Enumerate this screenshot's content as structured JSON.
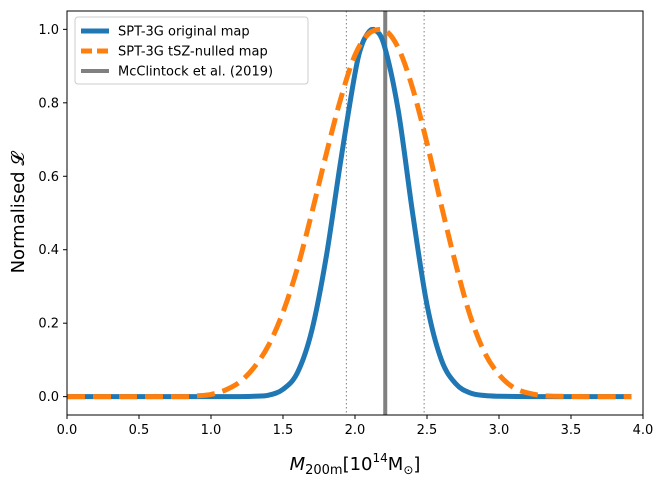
{
  "chart_data": {
    "type": "line",
    "xlabel": "M_200m[10^14 M_sun]",
    "xlabel_parts": {
      "symbol": "M",
      "subscript": "200m",
      "open": "[10",
      "exponent": "14",
      "unit": "M",
      "unit_subscript": "⊙",
      "close": "]"
    },
    "ylabel": "Normalised 𝓛",
    "xlim": [
      0.0,
      4.0
    ],
    "ylim": [
      -0.05,
      1.05
    ],
    "xticks": [
      0.0,
      0.5,
      1.0,
      1.5,
      2.0,
      2.5,
      3.0,
      3.5,
      4.0
    ],
    "xtick_labels": [
      "0.0",
      "0.5",
      "1.0",
      "1.5",
      "2.0",
      "2.5",
      "3.0",
      "3.5",
      "4.0"
    ],
    "yticks": [
      0.0,
      0.2,
      0.4,
      0.6,
      0.8,
      1.0
    ],
    "ytick_labels": [
      "0.0",
      "0.2",
      "0.4",
      "0.6",
      "0.8",
      "1.0"
    ],
    "legend_position": "top-left",
    "series": [
      {
        "name": "SPT-3G original map",
        "style": "solid",
        "color": "#1f77b4",
        "x": [
          0.0,
          0.2,
          0.4,
          0.6,
          0.8,
          1.0,
          1.1,
          1.2,
          1.3,
          1.4,
          1.5,
          1.6,
          1.7,
          1.8,
          1.9,
          2.0,
          2.05,
          2.1,
          2.13,
          2.2,
          2.3,
          2.4,
          2.5,
          2.6,
          2.7,
          2.8,
          2.9,
          3.0,
          3.2,
          3.4,
          3.6,
          3.8,
          3.92
        ],
        "y": [
          0.0,
          0.0,
          0.0,
          0.0,
          0.0,
          0.0,
          0.0,
          0.0,
          0.001,
          0.004,
          0.02,
          0.065,
          0.18,
          0.38,
          0.64,
          0.88,
          0.96,
          0.995,
          1.0,
          0.96,
          0.78,
          0.5,
          0.25,
          0.1,
          0.035,
          0.01,
          0.003,
          0.001,
          0.0,
          0.0,
          0.0,
          0.0,
          0.0
        ]
      },
      {
        "name": "SPT-3G tSZ-nulled map",
        "style": "dashed",
        "color": "#ff7f0e",
        "x": [
          0.0,
          0.4,
          0.8,
          0.9,
          1.0,
          1.1,
          1.2,
          1.3,
          1.4,
          1.5,
          1.6,
          1.7,
          1.8,
          1.9,
          2.0,
          2.1,
          2.2,
          2.3,
          2.4,
          2.5,
          2.6,
          2.7,
          2.8,
          2.9,
          3.0,
          3.1,
          3.2,
          3.3,
          3.4,
          3.6,
          3.8,
          3.92
        ],
        "y": [
          0.0,
          0.0,
          0.0,
          0.002,
          0.006,
          0.018,
          0.04,
          0.08,
          0.14,
          0.23,
          0.35,
          0.5,
          0.66,
          0.81,
          0.93,
          0.99,
          1.0,
          0.95,
          0.84,
          0.69,
          0.52,
          0.36,
          0.22,
          0.12,
          0.06,
          0.025,
          0.01,
          0.003,
          0.001,
          0.0,
          0.0,
          0.0
        ]
      }
    ],
    "reference": {
      "name": "McClintock et al. (2019)",
      "color": "#808080",
      "x": 2.21,
      "band": [
        1.94,
        2.48
      ]
    }
  }
}
